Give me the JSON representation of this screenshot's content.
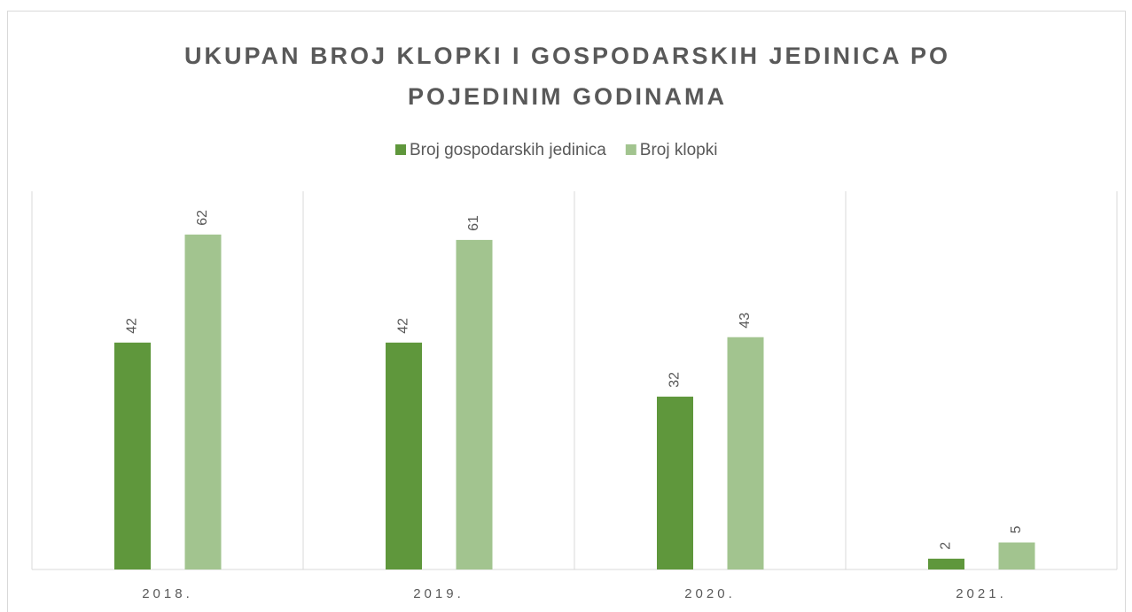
{
  "chart_data": {
    "type": "bar",
    "title": "UKUPAN BROJ KLOPKI I GOSPODARSKIH JEDINICA PO POJEDINIM GODINAMA",
    "categories": [
      "2018.",
      "2019.",
      "2020.",
      "2021."
    ],
    "series": [
      {
        "name": "Broj gospodarskih jedinica",
        "color": "#5f973c",
        "values": [
          42,
          42,
          32,
          2
        ]
      },
      {
        "name": "Broj klopki",
        "color": "#a2c48f",
        "values": [
          62,
          61,
          43,
          5
        ]
      }
    ],
    "ylim": [
      0,
      70
    ],
    "legend": "top"
  }
}
